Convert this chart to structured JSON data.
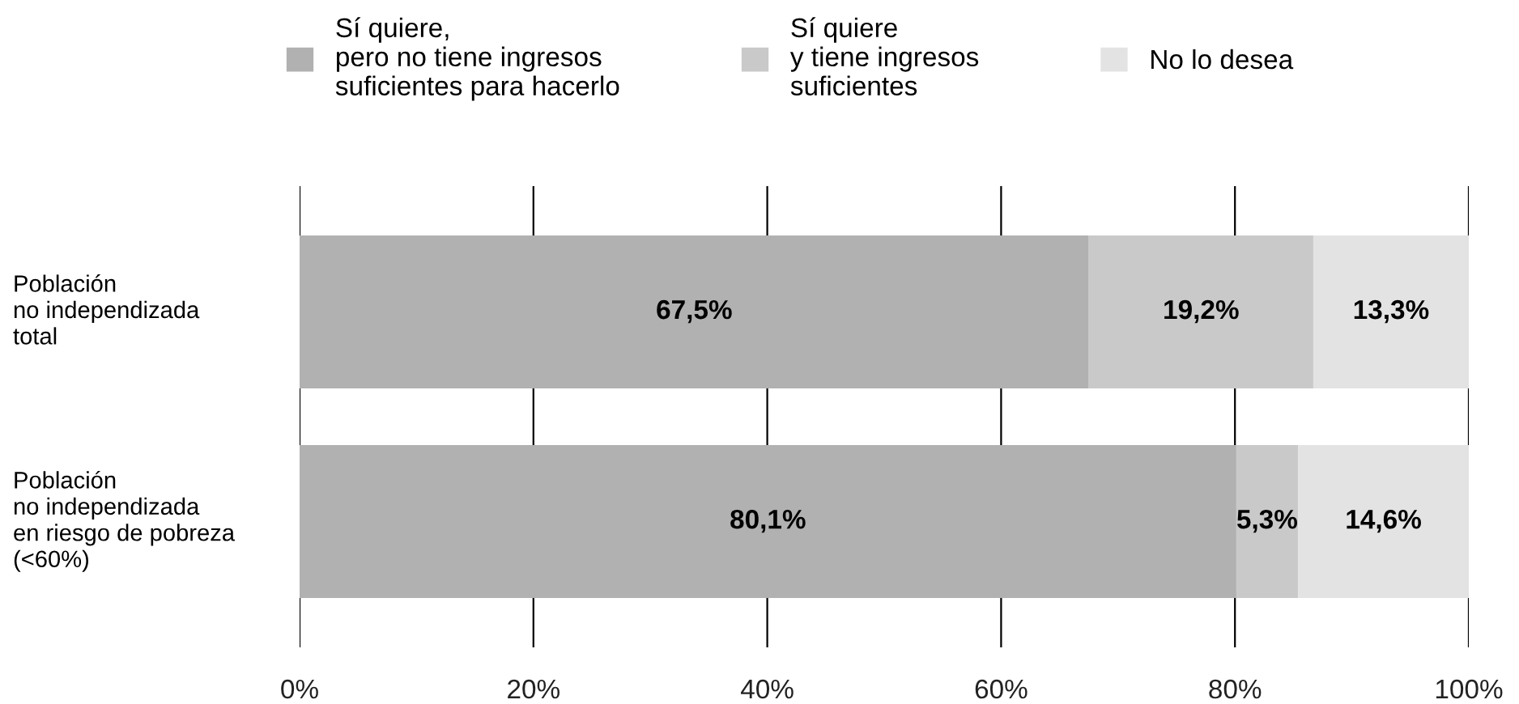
{
  "chart_data": {
    "type": "bar",
    "orientation": "horizontal",
    "stacked": true,
    "categories": [
      "Población\nno independizada\ntotal",
      "Población\nno independizada\nen riesgo de pobreza\n(<60%)"
    ],
    "series": [
      {
        "name": "Sí quiere,\npero no tiene ingresos\nsuficientes para hacerlo",
        "color": "#b1b1b1",
        "values": [
          67.5,
          80.1
        ],
        "value_labels": [
          "67,5%",
          "80,1%"
        ]
      },
      {
        "name": "Sí quiere\ny tiene ingresos\nsuficientes",
        "color": "#c9c9c9",
        "values": [
          19.2,
          5.3
        ],
        "value_labels": [
          "19,2%",
          "5,3%"
        ]
      },
      {
        "name": "No lo desea",
        "color": "#e3e3e3",
        "values": [
          13.3,
          14.6
        ],
        "value_labels": [
          "13,3%",
          "14,6%"
        ]
      }
    ],
    "xlim": [
      0,
      100
    ],
    "xticks": [
      {
        "value": 0,
        "label": "0%"
      },
      {
        "value": 20,
        "label": "20%"
      },
      {
        "value": 40,
        "label": "40%"
      },
      {
        "value": 60,
        "label": "60%"
      },
      {
        "value": 80,
        "label": "80%"
      },
      {
        "value": 100,
        "label": "100%"
      }
    ],
    "grid": "x",
    "legend": "top"
  }
}
